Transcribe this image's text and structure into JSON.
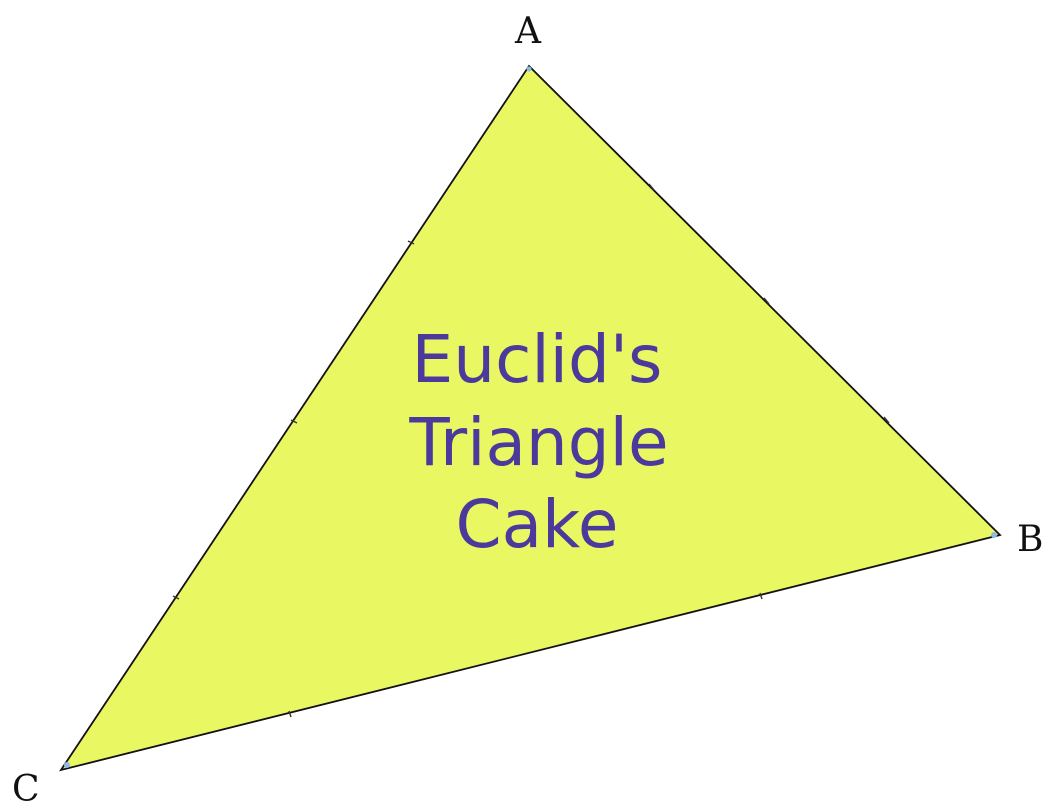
{
  "diagram": {
    "vertices": {
      "a": {
        "label": "A"
      },
      "b": {
        "label": "B"
      },
      "c": {
        "label": "C"
      }
    },
    "cake_lines": [
      "Euclid's",
      "Triangle",
      "Cake"
    ]
  },
  "colors": {
    "fill": "#e9f763",
    "stroke": "#111111",
    "text": "#4b3a9c",
    "vertex_marker": "#8fb8e8"
  }
}
